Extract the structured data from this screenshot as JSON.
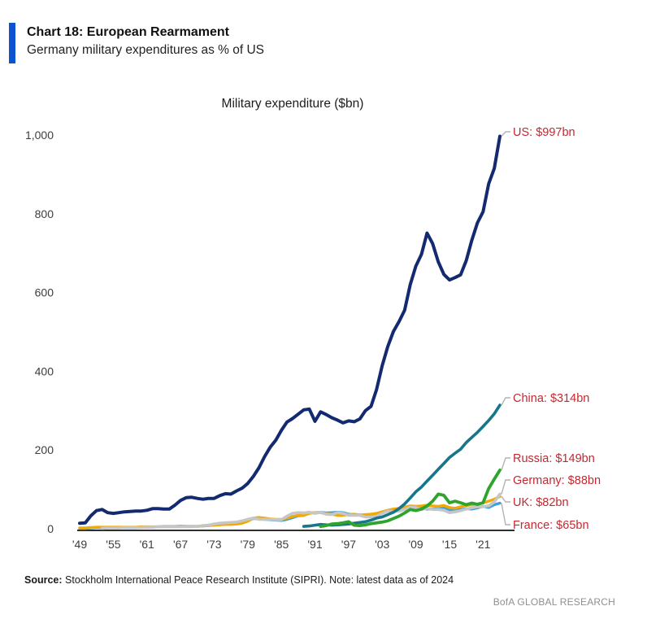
{
  "header": {
    "title": "Chart 18: European Rearmament",
    "subtitle": "Germany military expenditures as % of US",
    "accent_color": "#0d52d1"
  },
  "chart_data": {
    "type": "line",
    "title": "Military expenditure ($bn)",
    "xlabel": "",
    "ylabel": "",
    "x_range": [
      1949,
      2024
    ],
    "y_range": [
      0,
      1000
    ],
    "grid": false,
    "legend_position": "end-of-line-labels",
    "label_color": "#c5282f",
    "y_ticks": [
      "1,000",
      "800",
      "600",
      "400",
      "200",
      "0"
    ],
    "y_tick_values": [
      1000,
      800,
      600,
      400,
      200,
      0
    ],
    "x_ticks": [
      "'49",
      "'55",
      "'61",
      "'67",
      "'73",
      "'79",
      "'85",
      "'91",
      "'97",
      "'03",
      "'09",
      "'15",
      "'21"
    ],
    "x_tick_years": [
      1949,
      1955,
      1961,
      1967,
      1973,
      1979,
      1985,
      1991,
      1997,
      2003,
      2009,
      2015,
      2021
    ],
    "series": [
      {
        "name": "US",
        "label": "US: $997bn",
        "color": "#132a70",
        "final_value": 997,
        "start_year": 1949,
        "values": [
          14,
          15,
          33,
          46,
          49,
          41,
          39,
          41,
          43,
          44,
          45,
          45,
          47,
          51,
          51,
          50,
          50,
          60,
          72,
          79,
          80,
          77,
          75,
          77,
          77,
          84,
          89,
          88,
          96,
          103,
          115,
          133,
          155,
          183,
          207,
          225,
          250,
          271,
          280,
          291,
          302,
          304,
          273,
          297,
          290,
          282,
          276,
          269,
          274,
          272,
          279,
          300,
          311,
          354,
          414,
          463,
          501,
          526,
          555,
          620,
          667,
          697,
          751,
          724,
          678,
          646,
          632,
          638,
          645,
          681,
          733,
          777,
          805,
          876,
          915,
          997
        ]
      },
      {
        "name": "China",
        "label": "China: $314bn",
        "color": "#17768a",
        "final_value": 314,
        "start_year": 1989,
        "values": [
          6,
          7,
          9,
          11,
          10,
          9,
          10,
          11,
          12,
          14,
          16,
          18,
          22,
          27,
          30,
          36,
          42,
          51,
          63,
          78,
          94,
          106,
          121,
          136,
          151,
          166,
          181,
          192,
          202,
          219,
          232,
          245,
          260,
          275,
          292,
          314
        ]
      },
      {
        "name": "Russia",
        "label": "Russia: $149bn",
        "color": "#2fa42c",
        "final_value": 149,
        "start_year": 1992,
        "values": [
          6,
          8,
          12,
          13,
          15,
          18,
          9,
          8,
          10,
          13,
          15,
          17,
          20,
          26,
          32,
          40,
          49,
          46,
          50,
          58,
          70,
          88,
          85,
          66,
          70,
          66,
          61,
          65,
          62,
          66,
          102,
          126,
          149
        ]
      },
      {
        "name": "Germany",
        "label": "Germany: $88bn",
        "color": "#c6c6c6",
        "final_value": 88,
        "start_year": 1953,
        "values": [
          1,
          2,
          2,
          2,
          3,
          3,
          3,
          3,
          4,
          4,
          5,
          5,
          5,
          5,
          5,
          5,
          5,
          6,
          8,
          9,
          12,
          14,
          15,
          16,
          17,
          20,
          24,
          27,
          24,
          24,
          24,
          23,
          23,
          32,
          39,
          41,
          40,
          42,
          39,
          42,
          37,
          36,
          41,
          39,
          34,
          34,
          34,
          30,
          30,
          32,
          39,
          45,
          44,
          45,
          49,
          55,
          54,
          49,
          52,
          49,
          49,
          47,
          41,
          43,
          46,
          50,
          53,
          56,
          56,
          58,
          68,
          88
        ]
      },
      {
        "name": "UK",
        "label": "UK: $82bn",
        "color": "#f4a900",
        "final_value": 82,
        "start_year": 1949,
        "values": [
          2,
          2,
          3,
          4,
          4,
          4,
          4,
          4,
          4,
          4,
          4,
          5,
          5,
          5,
          5,
          6,
          6,
          6,
          7,
          6,
          6,
          6,
          7,
          8,
          9,
          10,
          11,
          11,
          12,
          14,
          19,
          27,
          29,
          27,
          25,
          24,
          24,
          27,
          31,
          34,
          34,
          39,
          41,
          41,
          38,
          37,
          34,
          34,
          36,
          37,
          35,
          36,
          37,
          39,
          43,
          47,
          50,
          52,
          55,
          58,
          57,
          58,
          60,
          58,
          57,
          59,
          54,
          52,
          56,
          59,
          61,
          63,
          66,
          70,
          75,
          82
        ]
      },
      {
        "name": "France",
        "label": "France: $65bn",
        "color": "#3f9fdf",
        "final_value": 65,
        "start_year": 1949,
        "values": [
          1,
          1,
          2,
          3,
          3,
          3,
          3,
          3,
          3,
          3,
          3,
          4,
          4,
          4,
          5,
          5,
          5,
          5,
          6,
          6,
          6,
          6,
          7,
          8,
          9,
          11,
          13,
          14,
          15,
          17,
          21,
          26,
          25,
          24,
          23,
          22,
          21,
          24,
          28,
          33,
          34,
          40,
          41,
          42,
          40,
          41,
          42,
          41,
          37,
          36,
          35,
          34,
          33,
          34,
          41,
          46,
          46,
          48,
          50,
          52,
          54,
          52,
          50,
          50,
          52,
          53,
          47,
          47,
          49,
          51,
          50,
          53,
          57,
          54,
          61,
          65
        ]
      }
    ]
  },
  "footer": {
    "source_label": "Source:",
    "source_text": " Stockholm International Peace Research Institute (SIPRI). Note: latest data as of 2024",
    "brand": "BofA GLOBAL RESEARCH"
  }
}
